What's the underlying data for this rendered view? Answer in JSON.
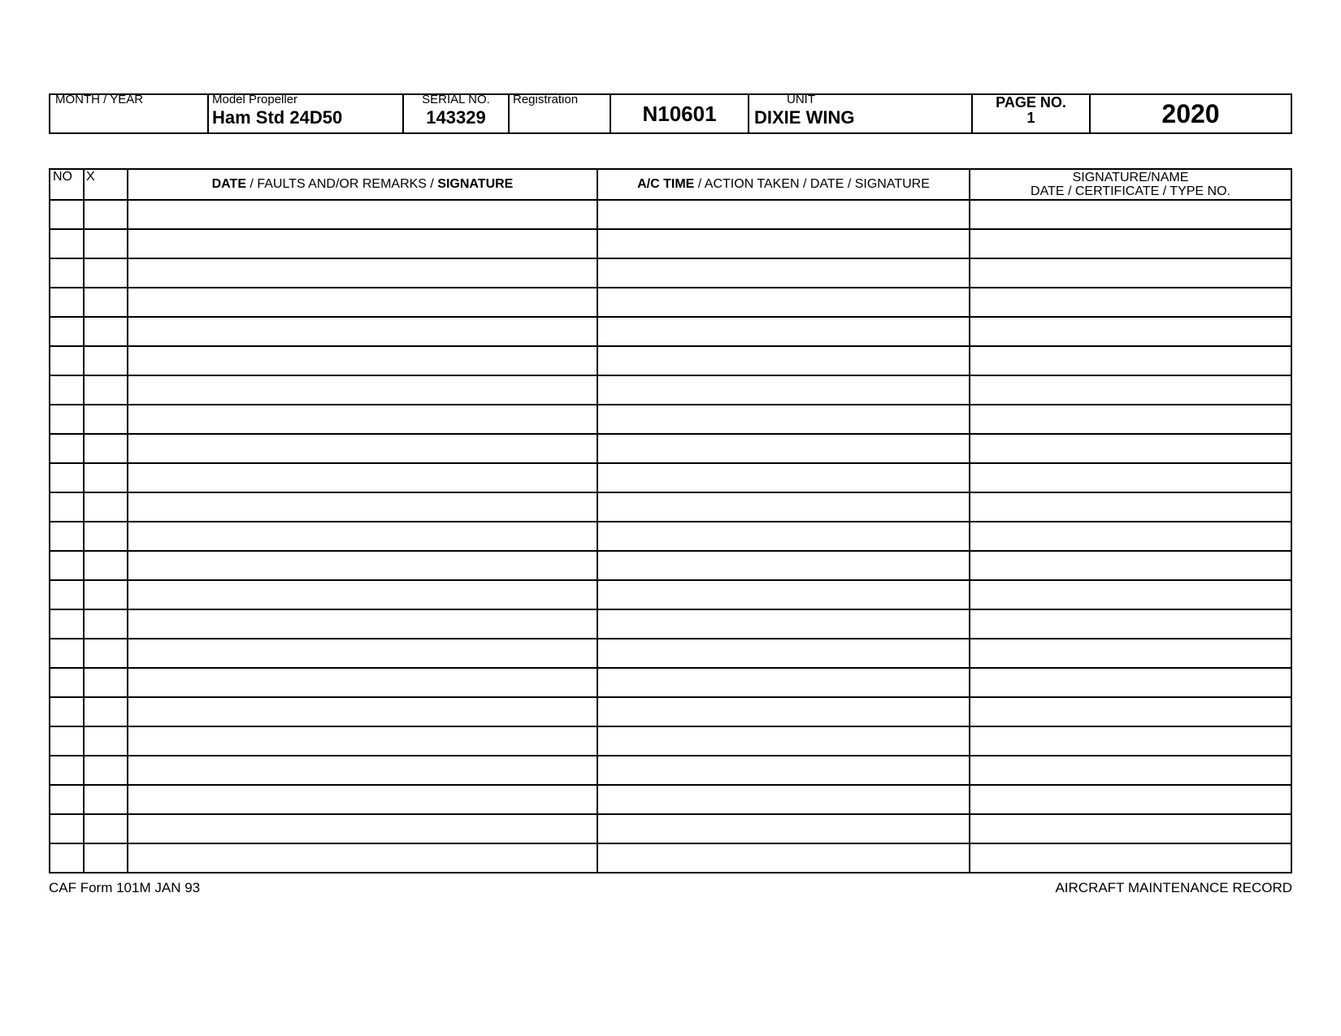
{
  "info": {
    "month_year_label": "MONTH / YEAR",
    "model_label": "Model  Propeller",
    "model_value": "Ham Std 24D50",
    "serial_label": "SERIAL NO.",
    "serial_value": "143329",
    "registration_label": "Registration",
    "registration_value": "N10601",
    "unit_label": "UNIT",
    "unit_value": "DIXIE WING",
    "page_no_label": "PAGE NO.",
    "page_no_value": "1",
    "year_value": "2020"
  },
  "table": {
    "headers": {
      "no": "NO",
      "x": "X",
      "faults_pre": "DATE",
      "faults_mid": " / FAULTS AND/OR REMARKS / ",
      "faults_post": "SIGNATURE",
      "action_pre": "A/C TIME",
      "action_post": " / ACTION TAKEN / DATE / SIGNATURE",
      "sig_line1": "SIGNATURE/NAME",
      "sig_line2": "DATE / CERTIFICATE / TYPE NO."
    },
    "row_count": 23
  },
  "footer": {
    "left": "CAF Form 101M JAN 93",
    "right": "AIRCRAFT MAINTENANCE RECORD"
  },
  "colors": {
    "border": "#000000",
    "background": "#ffffff",
    "text": "#000000"
  }
}
